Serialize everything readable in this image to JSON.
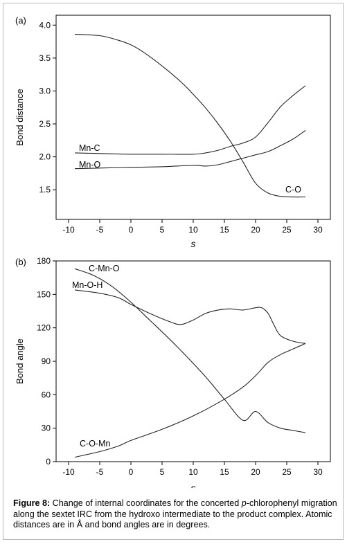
{
  "charts": [
    {
      "panel_label": "(a)",
      "ylabel": "Bond distance",
      "xlabel": "s",
      "xlim": [
        -12,
        32
      ],
      "ylim": [
        1.05,
        4.15
      ],
      "xticks": [
        -10,
        -5,
        0,
        5,
        10,
        15,
        20,
        25,
        30
      ],
      "yticks": [
        1.5,
        2.0,
        2.5,
        3.0,
        3.5,
        4.0
      ],
      "ytick_labels": [
        "1.5",
        "2.0",
        "2.5",
        "3.0",
        "3.5",
        "4.0"
      ]
    },
    {
      "panel_label": "(b)",
      "ylabel": "Bond angle",
      "xlabel": "s",
      "xlim": [
        -12,
        32
      ],
      "ylim": [
        0,
        180
      ],
      "xticks": [
        -10,
        -5,
        0,
        5,
        10,
        15,
        20,
        25,
        30
      ],
      "yticks": [
        0,
        30,
        60,
        90,
        120,
        150,
        180
      ],
      "ytick_labels": [
        "0",
        "30",
        "60",
        "90",
        "120",
        "150",
        "180"
      ]
    }
  ],
  "chart_data": [
    {
      "type": "line",
      "series": [
        {
          "name": "C-O",
          "x": [
            -9,
            -5,
            -2,
            0,
            2,
            5,
            8,
            10,
            12,
            14,
            16,
            18,
            20,
            22,
            24,
            26,
            28
          ],
          "y": [
            3.86,
            3.84,
            3.77,
            3.7,
            3.59,
            3.38,
            3.14,
            2.95,
            2.74,
            2.5,
            2.23,
            1.92,
            1.6,
            1.45,
            1.4,
            1.39,
            1.39
          ]
        },
        {
          "name": "Mn-C",
          "x": [
            -9,
            -5,
            0,
            5,
            10,
            12,
            14,
            16,
            18,
            20,
            22,
            24,
            26,
            28
          ],
          "y": [
            2.06,
            2.05,
            2.04,
            2.04,
            2.04,
            2.06,
            2.1,
            2.16,
            2.21,
            2.3,
            2.52,
            2.76,
            2.93,
            3.08
          ]
        },
        {
          "name": "Mn-O",
          "x": [
            -9,
            -5,
            0,
            5,
            10,
            12,
            14,
            16,
            18,
            20,
            22,
            24,
            26,
            28
          ],
          "y": [
            1.82,
            1.83,
            1.84,
            1.85,
            1.87,
            1.86,
            1.88,
            1.93,
            1.98,
            2.03,
            2.08,
            2.17,
            2.27,
            2.4
          ]
        }
      ]
    },
    {
      "type": "line",
      "series": [
        {
          "name": "C-Mn-O",
          "x": [
            -9,
            -6,
            -3,
            0,
            3,
            6,
            9,
            12,
            15,
            18,
            20,
            22,
            24,
            26,
            28
          ],
          "y": [
            173,
            167,
            157,
            143,
            127,
            111,
            94,
            76,
            56,
            37,
            45,
            35,
            30,
            28,
            26
          ]
        },
        {
          "name": "Mn-O-H",
          "x": [
            -9,
            -5,
            -2,
            0,
            3,
            6,
            8,
            10,
            12,
            14,
            16,
            18,
            20,
            21,
            22,
            23,
            24,
            26,
            28
          ],
          "y": [
            154,
            151,
            147,
            141,
            133,
            126,
            123,
            127,
            133,
            136,
            137,
            136,
            138,
            138,
            133,
            122,
            113,
            108,
            106
          ]
        },
        {
          "name": "C-O-Mn",
          "x": [
            -9,
            -5,
            -2,
            0,
            5,
            10,
            15,
            18,
            20,
            22,
            24,
            26,
            28
          ],
          "y": [
            4,
            9,
            14,
            19,
            29,
            41,
            56,
            67,
            77,
            89,
            96,
            101,
            106
          ]
        }
      ]
    }
  ],
  "caption": {
    "figure_label": "Figure 8:",
    "text_before_italic": " Change of internal coordinates for the concerted ",
    "italic": "p",
    "text_after_italic": "-chlorophenyl migration along the sextet IRC from the hydroxo intermediate to the product complex. Atomic distances are in Å and bond angles are in degrees."
  }
}
